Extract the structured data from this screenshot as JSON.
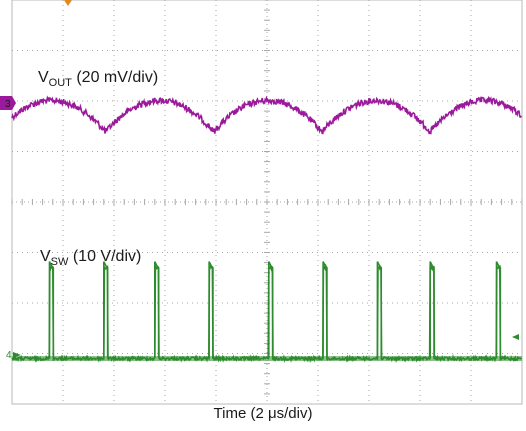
{
  "chart_data": {
    "type": "line",
    "title": "",
    "xlabel": "Time (2 μs/div)",
    "grid": true,
    "grid_divisions": {
      "x": 10,
      "y": 8
    },
    "x_unit": "μs",
    "x_range": [
      0,
      20
    ],
    "series": [
      {
        "name_main": "V",
        "name_sub": "OUT",
        "name_rest": " (20 mV/div)",
        "channel_marker": "3",
        "color": "#9b1a9b",
        "waveform": "ripple",
        "valley_times_us": [
          3.67,
          7.8,
          12.27,
          16.4
        ],
        "amplitude_div": 0.62,
        "baseline_div": 2.3
      },
      {
        "name_main": "V",
        "name_sub": "SW",
        "name_rest": " (10 V/div)",
        "channel_marker": "4",
        "color": "#2e8b2e",
        "waveform": "pulse",
        "pulse_times_us": [
          1.47,
          3.6,
          5.6,
          7.73,
          10.07,
          12.2,
          14.33,
          16.4,
          19.0
        ],
        "pulse_width_us": 0.15,
        "high_div": 1.8,
        "baseline_div": 7.1
      }
    ]
  }
}
